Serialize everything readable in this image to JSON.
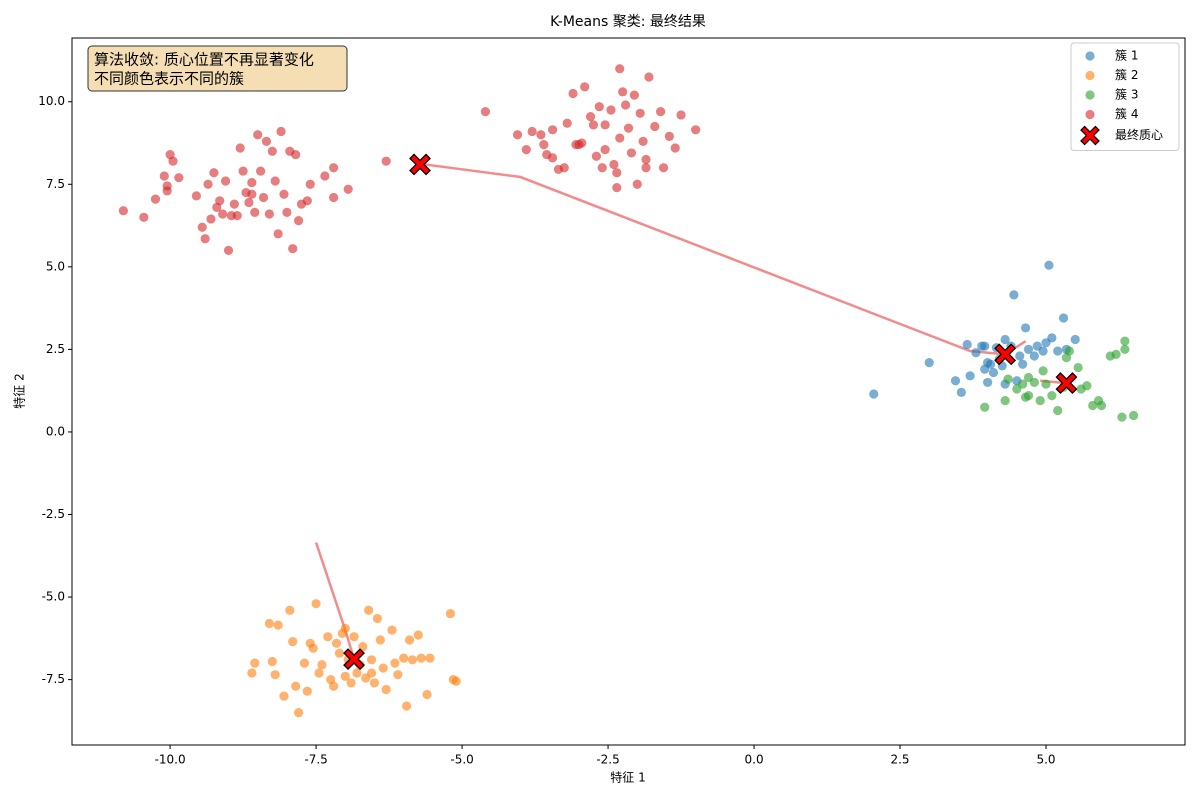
{
  "chart_data": {
    "type": "scatter",
    "title": "K-Means 聚类: 最终结果",
    "xlabel": "特征 1",
    "ylabel": "特征 2",
    "annotation": [
      "算法收敛: 质心位置不再显著变化",
      "不同颜色表示不同的簇"
    ],
    "legend": "upper right",
    "grid": false,
    "xlim": [
      -11.68,
      7.38
    ],
    "ylim": [
      -9.48,
      11.93
    ],
    "xticks": [
      {
        "value": -10,
        "label": "-10.0"
      },
      -7.5,
      {
        "value": -5,
        "label": "-5.0"
      },
      -2.5,
      {
        "value": 0,
        "label": "0.0"
      },
      2.5,
      {
        "value": 5,
        "label": "5.0"
      }
    ],
    "yticks": [
      -7.5,
      {
        "value": -5,
        "label": "-5.0"
      },
      -2.5,
      {
        "value": 0,
        "label": "0.0"
      },
      2.5,
      {
        "value": 5,
        "label": "5.0"
      },
      7.5,
      {
        "value": 10,
        "label": "10.0"
      }
    ],
    "series": [
      {
        "name": "簇 1",
        "color": "#1f77b4",
        "x": [
          2.05,
          3.0,
          3.45,
          3.55,
          3.65,
          3.7,
          3.8,
          3.9,
          3.95,
          4.0,
          4.05,
          4.1,
          4.15,
          4.2,
          4.3,
          4.3,
          4.4,
          4.45,
          4.5,
          4.55,
          4.6,
          4.65,
          4.7,
          4.8,
          4.85,
          4.95,
          5.0,
          5.05,
          5.1,
          5.2,
          5.3,
          5.35,
          5.5,
          4.0,
          4.25,
          3.95
        ],
        "y": [
          1.15,
          2.1,
          1.55,
          1.2,
          2.65,
          1.7,
          2.4,
          2.6,
          1.9,
          1.5,
          2.05,
          1.8,
          2.55,
          2.2,
          2.8,
          1.45,
          2.6,
          4.15,
          1.55,
          2.3,
          2.05,
          3.15,
          2.5,
          2.3,
          2.6,
          2.45,
          2.7,
          5.05,
          2.85,
          2.45,
          3.45,
          2.5,
          2.8,
          2.1,
          2.0,
          2.6
        ]
      },
      {
        "name": "簇 2",
        "color": "#ff7f0e",
        "x": [
          -8.6,
          -8.55,
          -8.3,
          -8.25,
          -8.2,
          -8.15,
          -8.05,
          -7.95,
          -7.9,
          -7.85,
          -7.8,
          -7.7,
          -7.65,
          -7.6,
          -7.55,
          -7.5,
          -7.45,
          -7.4,
          -7.3,
          -7.25,
          -7.2,
          -7.15,
          -7.1,
          -7.05,
          -7.0,
          -6.95,
          -6.9,
          -6.85,
          -6.8,
          -6.75,
          -6.7,
          -6.65,
          -6.6,
          -6.55,
          -6.5,
          -6.45,
          -6.4,
          -6.35,
          -6.3,
          -6.2,
          -6.15,
          -6.1,
          -6.0,
          -5.95,
          -5.9,
          -5.85,
          -5.75,
          -5.7,
          -5.6,
          -5.55,
          -5.2,
          -5.15,
          -5.1,
          -6.55,
          -7.0
        ],
        "y": [
          -7.3,
          -7.0,
          -5.8,
          -6.95,
          -7.35,
          -5.85,
          -8.0,
          -5.4,
          -6.35,
          -7.7,
          -8.5,
          -7.0,
          -7.85,
          -6.4,
          -6.55,
          -5.2,
          -7.3,
          -7.05,
          -6.2,
          -7.5,
          -7.7,
          -6.4,
          -6.7,
          -6.1,
          -5.95,
          -6.9,
          -7.6,
          -6.2,
          -7.3,
          -7.05,
          -6.5,
          -7.45,
          -5.4,
          -6.9,
          -7.6,
          -5.65,
          -6.3,
          -7.15,
          -7.8,
          -6.0,
          -7.0,
          -7.35,
          -6.85,
          -8.3,
          -6.3,
          -6.9,
          -6.15,
          -6.85,
          -7.95,
          -6.85,
          -5.5,
          -7.5,
          -7.55,
          -7.3,
          -7.4
        ]
      },
      {
        "name": "簇 3",
        "color": "#2ca02c",
        "x": [
          3.95,
          4.3,
          4.35,
          4.5,
          4.6,
          4.65,
          4.7,
          4.8,
          4.9,
          4.95,
          5.0,
          5.2,
          5.3,
          5.35,
          5.4,
          5.55,
          5.6,
          5.7,
          5.8,
          5.95,
          5.9,
          6.1,
          6.2,
          6.35,
          6.35,
          6.3,
          6.5,
          5.1,
          4.7
        ],
        "y": [
          0.75,
          0.95,
          1.6,
          1.3,
          1.45,
          1.05,
          1.65,
          1.5,
          0.95,
          1.85,
          1.45,
          0.65,
          1.35,
          2.25,
          2.45,
          1.95,
          1.3,
          1.4,
          0.8,
          0.8,
          0.95,
          2.3,
          2.35,
          2.75,
          2.5,
          0.45,
          0.5,
          1.1,
          1.1
        ]
      },
      {
        "name": "簇 4",
        "color": "#d62728",
        "x": [
          -10.8,
          -10.45,
          -10.25,
          -10.1,
          -10.05,
          -10.05,
          -10.0,
          -9.95,
          -9.85,
          -9.55,
          -9.45,
          -9.4,
          -9.35,
          -9.3,
          -9.25,
          -9.2,
          -9.15,
          -9.05,
          -9.0,
          -8.95,
          -8.85,
          -8.8,
          -8.75,
          -8.7,
          -8.65,
          -8.6,
          -8.55,
          -8.5,
          -8.45,
          -8.4,
          -8.35,
          -8.3,
          -8.25,
          -8.2,
          -8.15,
          -8.1,
          -8.05,
          -8.0,
          -7.95,
          -7.9,
          -7.85,
          -7.8,
          -7.75,
          -7.65,
          -7.6,
          -7.35,
          -7.2,
          -7.2,
          -6.95,
          -8.6,
          -9.1,
          -8.9,
          -6.3,
          -4.6,
          -4.05,
          -3.9,
          -3.8,
          -3.65,
          -3.6,
          -3.55,
          -3.45,
          -3.35,
          -3.25,
          -3.2,
          -3.1,
          -3.05,
          -2.95,
          -2.9,
          -2.8,
          -2.75,
          -2.7,
          -2.65,
          -2.55,
          -2.45,
          -2.4,
          -2.35,
          -2.3,
          -2.25,
          -2.2,
          -2.15,
          -2.1,
          -2.05,
          -2.0,
          -1.95,
          -1.9,
          -1.85,
          -1.8,
          -1.7,
          -1.6,
          -1.55,
          -1.45,
          -1.35,
          -1.25,
          -1.0,
          -2.55,
          -3.0,
          -2.6,
          -1.85,
          -2.3,
          -3.45,
          -2.35
        ],
        "y": [
          6.7,
          6.5,
          7.05,
          7.75,
          7.45,
          7.3,
          8.4,
          8.2,
          7.7,
          7.15,
          6.2,
          5.85,
          7.5,
          6.45,
          7.85,
          6.8,
          7.0,
          7.6,
          5.5,
          6.55,
          6.55,
          8.6,
          7.9,
          7.25,
          6.95,
          7.55,
          6.65,
          9.0,
          7.9,
          7.1,
          8.8,
          6.6,
          8.5,
          7.6,
          6.0,
          9.1,
          7.2,
          6.65,
          8.5,
          5.55,
          8.4,
          6.4,
          6.9,
          7.0,
          7.5,
          7.75,
          8.0,
          7.1,
          7.35,
          7.2,
          6.6,
          6.9,
          8.2,
          9.7,
          9.0,
          8.55,
          9.1,
          9.0,
          8.7,
          8.4,
          9.15,
          7.95,
          8.0,
          9.35,
          10.25,
          8.7,
          8.75,
          10.45,
          9.55,
          9.3,
          8.35,
          9.85,
          8.55,
          9.75,
          8.1,
          7.4,
          11.0,
          10.3,
          9.9,
          9.2,
          8.45,
          10.2,
          7.5,
          9.65,
          8.8,
          8.25,
          10.75,
          9.25,
          9.7,
          8.0,
          8.95,
          8.6,
          9.6,
          9.15,
          9.3,
          8.7,
          8.0,
          8.0,
          8.9,
          8.3,
          7.85
        ]
      },
      {
        "name": "最终质心",
        "color": "#ff0000",
        "marker": "X",
        "x": [
          4.3,
          -6.85,
          5.35,
          -5.72
        ],
        "y": [
          2.35,
          -6.88,
          1.48,
          8.1
        ]
      }
    ],
    "trajectories": [
      {
        "color": "#f08080",
        "x": [
          -5.72,
          -4.0,
          3.7,
          4.3,
          4.65
        ],
        "y": [
          8.12,
          7.72,
          2.45,
          2.35,
          2.75
        ]
      },
      {
        "color": "#f08080",
        "x": [
          -7.5,
          -7.0,
          -6.85
        ],
        "y": [
          -3.35,
          -6.0,
          -6.88
        ]
      },
      {
        "color": "#f08080",
        "x": [
          4.9,
          5.35
        ],
        "y": [
          1.55,
          1.48
        ]
      }
    ]
  }
}
